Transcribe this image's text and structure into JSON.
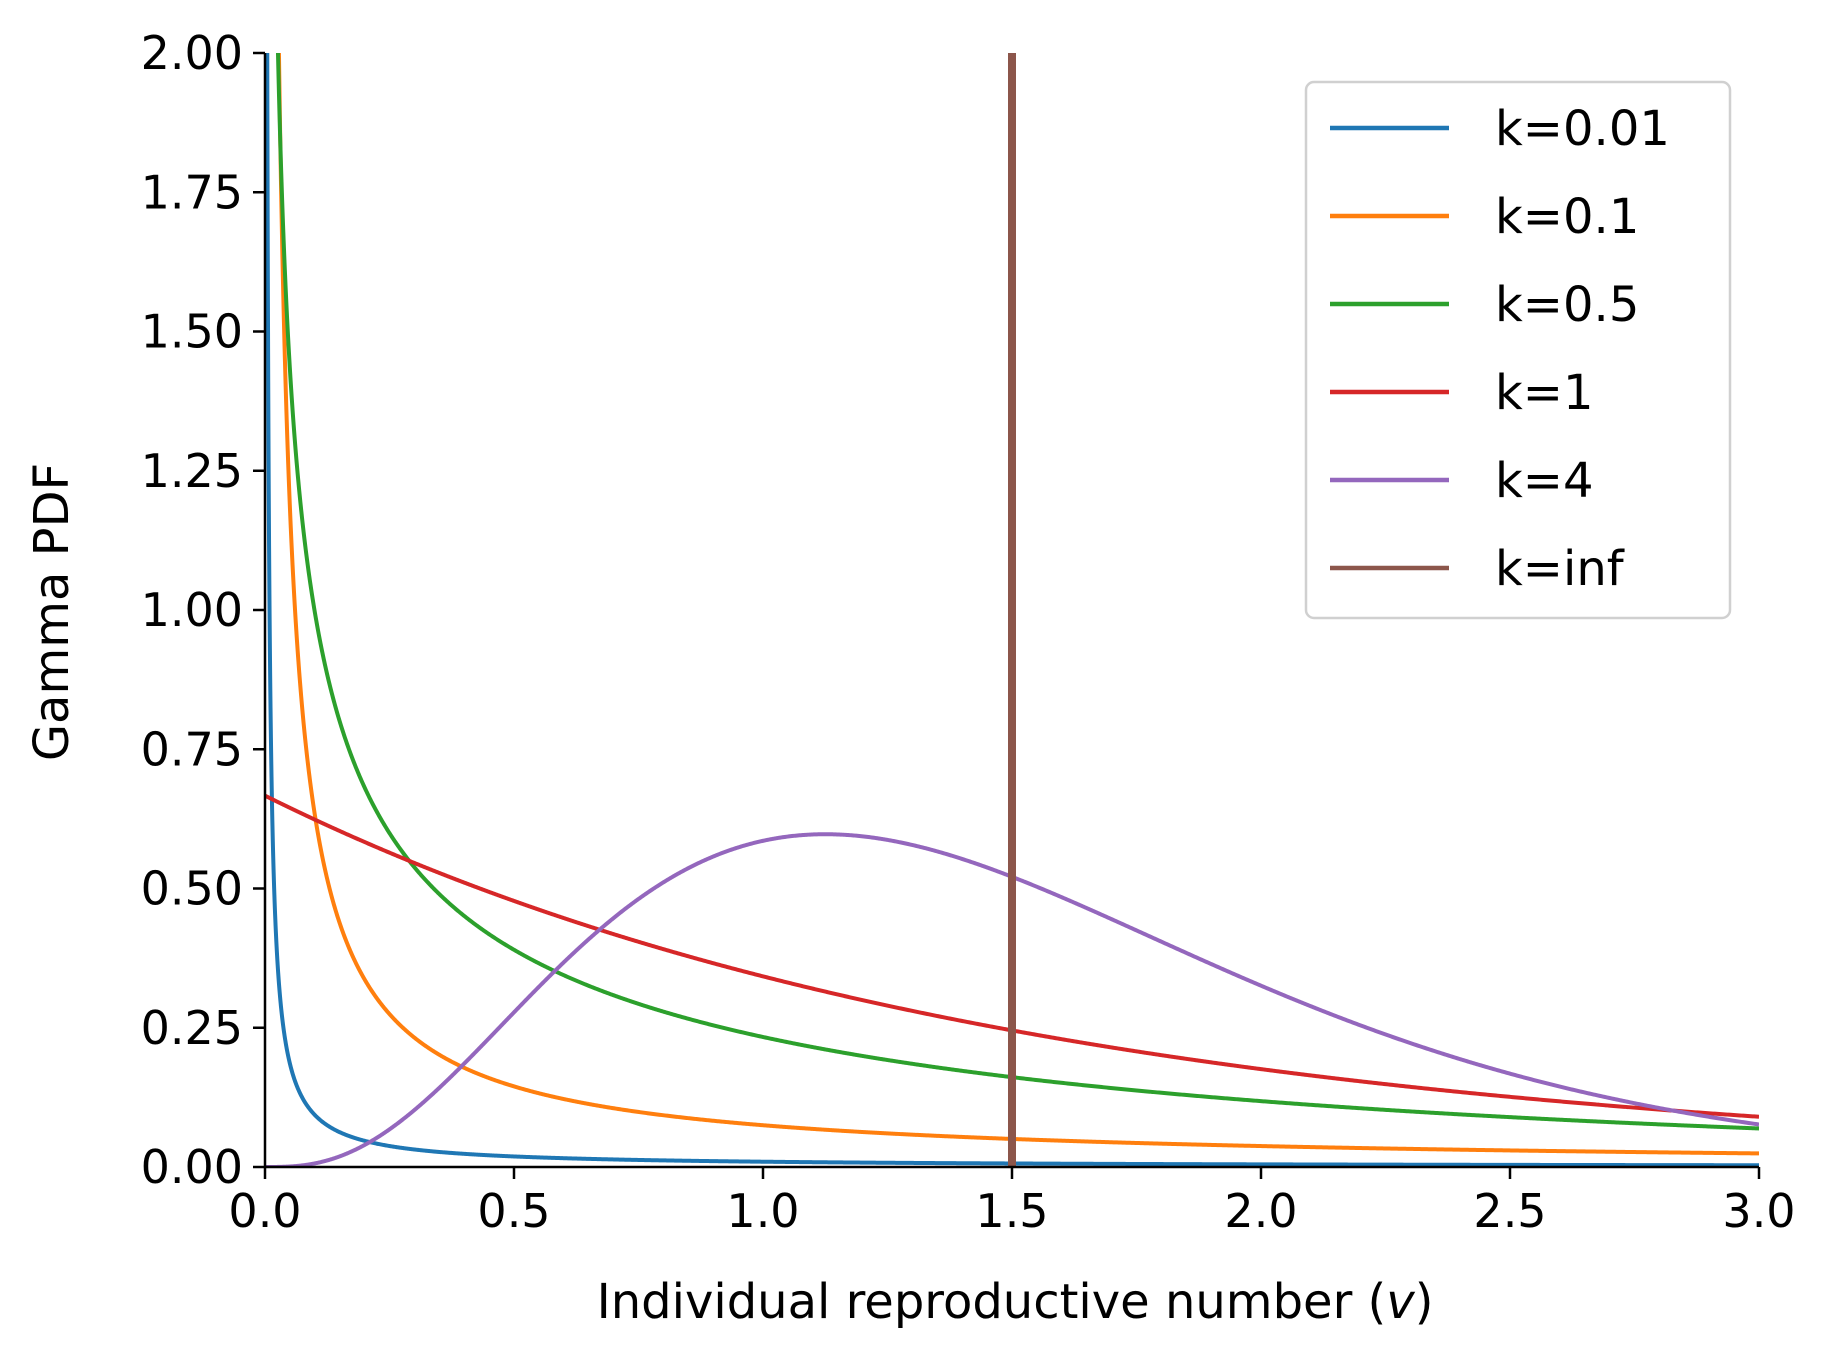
{
  "chart_data": {
    "type": "line",
    "title": "",
    "xlabel": "Individual reproductive number (",
    "xlabel_var": "v",
    "xlabel_close": ")",
    "ylabel": "Gamma PDF",
    "xlim": [
      0.0,
      3.0
    ],
    "ylim": [
      0.0,
      2.0
    ],
    "x_ticks": [
      "0.0",
      "0.5",
      "1.0",
      "1.5",
      "2.0",
      "2.5",
      "3.0"
    ],
    "y_ticks": [
      "0.00",
      "0.25",
      "0.50",
      "0.75",
      "1.00",
      "1.25",
      "1.50",
      "1.75",
      "2.00"
    ],
    "mean": 1.5,
    "grid": false,
    "legend_position": "top-right",
    "series": [
      {
        "name": "k=0.01",
        "k": 0.01,
        "color": "#1f77b4"
      },
      {
        "name": "k=0.1",
        "k": 0.1,
        "color": "#ff7f0e"
      },
      {
        "name": "k=0.5",
        "k": 0.5,
        "color": "#2ca02c"
      },
      {
        "name": "k=1",
        "k": 1,
        "color": "#d62728"
      },
      {
        "name": "k=4",
        "k": 4,
        "color": "#9467bd"
      },
      {
        "name": "k=inf",
        "k": "inf",
        "color": "#8c564b",
        "x": 1.5
      }
    ]
  }
}
